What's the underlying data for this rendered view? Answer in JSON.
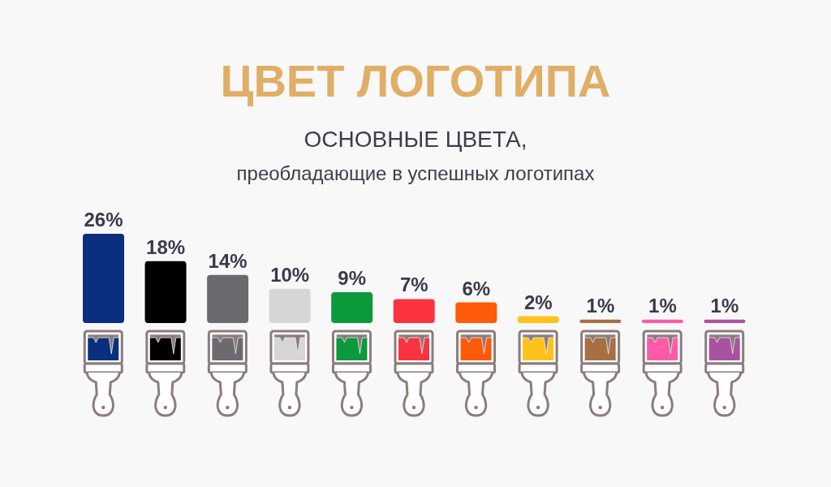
{
  "chart_data": {
    "type": "bar",
    "title": "ЦВЕТ ЛОГОТИПА",
    "subtitle": "ОСНОВНЫЕ ЦВЕТА,\nпреобладающие в успешных логотипах",
    "categories": [
      null,
      null,
      null,
      null,
      null,
      null,
      null,
      null,
      null,
      null,
      null
    ],
    "values": [
      26,
      18,
      14,
      10,
      9,
      7,
      6,
      2,
      1,
      1,
      1
    ],
    "colors": [
      "#0a2f7f",
      "#000000",
      "#6b6a6e",
      "#d6d6d6",
      "#0c9a3c",
      "#fb3340",
      "#ff5a0a",
      "#ffc21a",
      "#a86f43",
      "#ff5aa8",
      "#a9529f"
    ],
    "value_labels": [
      "26%",
      "18%",
      "14%",
      "10%",
      "9%",
      "7%",
      "6%",
      "2%",
      "1%",
      "1%",
      "1%"
    ]
  }
}
